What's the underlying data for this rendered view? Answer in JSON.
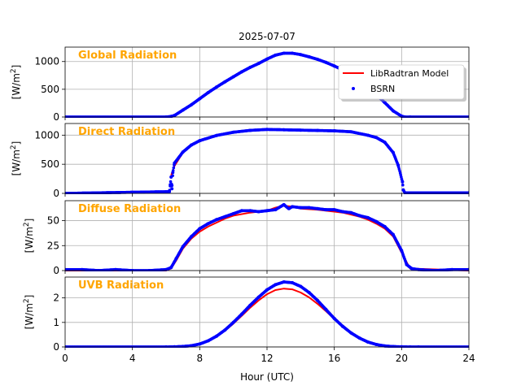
{
  "figure": {
    "date_title": "2025-07-07",
    "xlabel": "Hour (UTC)",
    "colors": {
      "model": "#ff0000",
      "measured": "#0000ff",
      "panel_title": "#ffa500"
    },
    "legend": {
      "placement": "upper-right of first panel",
      "entries": [
        "LibRadtran Model",
        "BSRN"
      ]
    }
  },
  "chart_data": [
    {
      "type": "line",
      "title": "Global Radiation",
      "ylabel_main": "[W/m",
      "ylabel_sup": "2",
      "ylabel_end": "]",
      "xlim": [
        0,
        24
      ],
      "xticks": [
        0,
        4,
        8,
        12,
        16,
        20,
        24
      ],
      "xtick_labels": [
        "0",
        "4",
        "8",
        "12",
        "16",
        "20",
        "24"
      ],
      "ylim": [
        0,
        1260
      ],
      "yticks": [
        0,
        500,
        1000
      ],
      "ytick_labels": [
        "0",
        "500",
        "1000"
      ],
      "grid": true,
      "show_xtick_labels": false,
      "series": [
        {
          "name": "LibRadtran Model",
          "style": "line",
          "x": [
            0,
            6,
            6.3,
            6.5,
            7,
            7.5,
            8,
            8.5,
            9,
            9.5,
            10,
            10.5,
            11,
            11.5,
            12,
            12.5,
            13,
            13.5,
            14,
            14.5,
            15,
            15.5,
            16,
            16.5,
            17,
            17.5,
            18,
            18.5,
            19,
            19.5,
            20,
            20.2,
            20.5,
            24
          ],
          "y": [
            0,
            0,
            8,
            25,
            120,
            215,
            320,
            430,
            530,
            625,
            720,
            810,
            890,
            960,
            1040,
            1110,
            1150,
            1150,
            1120,
            1080,
            1040,
            980,
            920,
            850,
            740,
            630,
            520,
            400,
            260,
            110,
            15,
            0,
            0,
            0
          ]
        },
        {
          "name": "BSRN",
          "style": "points",
          "x": [
            0,
            6,
            6.3,
            6.5,
            7,
            7.5,
            8,
            8.5,
            9,
            9.5,
            10,
            10.5,
            11,
            11.5,
            12,
            12.5,
            13,
            13.5,
            14,
            14.5,
            15,
            15.5,
            16,
            16.5,
            17,
            17.5,
            18,
            18.5,
            19,
            19.5,
            20,
            20.2,
            20.5,
            24
          ],
          "y": [
            0,
            0,
            10,
            28,
            125,
            220,
            330,
            440,
            540,
            635,
            725,
            815,
            895,
            965,
            1045,
            1115,
            1150,
            1150,
            1125,
            1085,
            1040,
            985,
            920,
            850,
            745,
            635,
            520,
            400,
            260,
            110,
            15,
            0,
            0,
            0
          ]
        }
      ]
    },
    {
      "type": "line",
      "title": "Direct Radiation",
      "ylabel_main": "[W/m",
      "ylabel_sup": "2",
      "ylabel_end": "]",
      "xlim": [
        0,
        24
      ],
      "xticks": [
        0,
        4,
        8,
        12,
        16,
        20,
        24
      ],
      "xtick_labels": [
        "0",
        "4",
        "8",
        "12",
        "16",
        "20",
        "24"
      ],
      "ylim": [
        0,
        1200
      ],
      "yticks": [
        0,
        500,
        1000
      ],
      "ytick_labels": [
        "0",
        "500",
        "1000"
      ],
      "grid": true,
      "show_xtick_labels": false,
      "series": [
        {
          "name": "LibRadtran Model",
          "style": "line",
          "x": [
            6.3,
            6.5,
            7,
            7.5,
            8,
            9,
            10,
            11,
            12,
            13,
            14,
            15,
            16,
            17,
            18,
            18.5,
            19,
            19.5,
            19.8,
            20.05
          ],
          "y": [
            310,
            470,
            700,
            820,
            900,
            990,
            1050,
            1080,
            1095,
            1090,
            1085,
            1080,
            1075,
            1060,
            1000,
            960,
            880,
            700,
            480,
            200
          ]
        },
        {
          "name": "BSRN",
          "style": "points",
          "x": [
            0,
            6.2,
            6.25,
            6.3,
            6.35,
            6.4,
            6.5,
            7,
            7.5,
            8,
            9,
            10,
            11,
            12,
            13,
            14,
            15,
            16,
            17,
            18,
            18.5,
            19,
            19.5,
            19.8,
            20.05,
            20.1,
            20.2,
            24
          ],
          "y": [
            0,
            30,
            150,
            280,
            80,
            360,
            520,
            710,
            830,
            905,
            995,
            1050,
            1082,
            1098,
            1092,
            1086,
            1080,
            1074,
            1058,
            998,
            958,
            878,
            700,
            480,
            200,
            60,
            10,
            10
          ]
        }
      ]
    },
    {
      "type": "line",
      "title": "Diffuse Radiation",
      "ylabel_main": "[W/m",
      "ylabel_sup": "2",
      "ylabel_end": "]",
      "xlim": [
        0,
        24
      ],
      "xticks": [
        0,
        4,
        8,
        12,
        16,
        20,
        24
      ],
      "xtick_labels": [
        "0",
        "4",
        "8",
        "12",
        "16",
        "20",
        "24"
      ],
      "ylim": [
        0,
        70
      ],
      "yticks": [
        0,
        25,
        50
      ],
      "ytick_labels": [
        "0",
        "25",
        "50"
      ],
      "grid": true,
      "show_xtick_labels": false,
      "series": [
        {
          "name": "LibRadtran Model",
          "style": "line",
          "x": [
            0,
            6,
            6.3,
            6.6,
            7,
            7.5,
            8,
            8.5,
            9,
            9.5,
            10,
            11,
            12,
            12.5,
            13,
            13.5,
            14,
            15,
            16,
            16.5,
            17,
            17.5,
            18,
            18.5,
            19,
            19.5,
            20,
            20.5,
            24
          ],
          "y": [
            0,
            0,
            2,
            10,
            22,
            32,
            39,
            44,
            48,
            52,
            55,
            58,
            60,
            63,
            65,
            64,
            62,
            61,
            59,
            58,
            56,
            54,
            51,
            47,
            42,
            34,
            18,
            2,
            0
          ]
        },
        {
          "name": "BSRN",
          "style": "points",
          "x": [
            0,
            1,
            2,
            3,
            4,
            5,
            6,
            6.3,
            6.6,
            7,
            7.5,
            8,
            8.5,
            9,
            9.5,
            10,
            10.5,
            11,
            11.5,
            12,
            12.5,
            13,
            13.3,
            13.5,
            14,
            14.5,
            15,
            15.5,
            16,
            16.5,
            17,
            17.5,
            18,
            18.5,
            19,
            19.5,
            20,
            20.3,
            20.6,
            21,
            22,
            23,
            24
          ],
          "y": [
            1,
            1,
            0,
            1,
            0,
            0,
            1,
            3,
            12,
            24,
            34,
            42,
            47,
            51,
            54,
            57,
            60,
            60,
            59,
            60,
            61,
            66,
            62,
            64,
            63,
            63,
            62,
            61,
            61,
            59,
            58,
            55,
            53,
            49,
            44,
            36,
            20,
            6,
            2,
            1,
            0,
            1,
            1
          ]
        }
      ]
    },
    {
      "type": "line",
      "title": "UVB Radiation",
      "ylabel_main": "[W/m",
      "ylabel_sup": "2",
      "ylabel_end": "]",
      "xlim": [
        0,
        24
      ],
      "xticks": [
        0,
        4,
        8,
        12,
        16,
        20,
        24
      ],
      "xtick_labels": [
        "0",
        "4",
        "8",
        "12",
        "16",
        "20",
        "24"
      ],
      "ylim": [
        0,
        2.85
      ],
      "yticks": [
        0,
        1,
        2
      ],
      "ytick_labels": [
        "0",
        "1",
        "2"
      ],
      "grid": true,
      "show_xtick_labels": true,
      "series": [
        {
          "name": "LibRadtran Model",
          "style": "line",
          "x": [
            0,
            6,
            6.5,
            7,
            7.5,
            8,
            8.5,
            9,
            9.5,
            10,
            10.5,
            11,
            11.5,
            12,
            12.5,
            13,
            13.5,
            14,
            14.5,
            15,
            15.5,
            16,
            16.5,
            17,
            17.5,
            18,
            18.5,
            19,
            19.5,
            20,
            20.5,
            21,
            24
          ],
          "y": [
            0,
            0,
            0.005,
            0.02,
            0.05,
            0.12,
            0.24,
            0.42,
            0.66,
            0.95,
            1.27,
            1.6,
            1.9,
            2.15,
            2.32,
            2.38,
            2.35,
            2.22,
            2.02,
            1.76,
            1.46,
            1.14,
            0.85,
            0.59,
            0.38,
            0.22,
            0.11,
            0.05,
            0.02,
            0.005,
            0,
            0,
            0
          ]
        },
        {
          "name": "BSRN",
          "style": "points",
          "x": [
            0,
            6,
            6.5,
            7,
            7.5,
            8,
            8.5,
            9,
            9.5,
            10,
            10.5,
            11,
            11.5,
            12,
            12.5,
            13,
            13.5,
            14,
            14.5,
            15,
            15.5,
            16,
            16.5,
            17,
            17.5,
            18,
            18.5,
            19,
            19.5,
            20,
            20.5,
            21,
            24
          ],
          "y": [
            0,
            0,
            0.005,
            0.02,
            0.05,
            0.12,
            0.25,
            0.44,
            0.69,
            1.0,
            1.34,
            1.7,
            2.03,
            2.33,
            2.54,
            2.65,
            2.62,
            2.47,
            2.22,
            1.9,
            1.53,
            1.16,
            0.84,
            0.57,
            0.36,
            0.2,
            0.1,
            0.04,
            0.015,
            0.005,
            0,
            0,
            0
          ]
        }
      ]
    }
  ]
}
